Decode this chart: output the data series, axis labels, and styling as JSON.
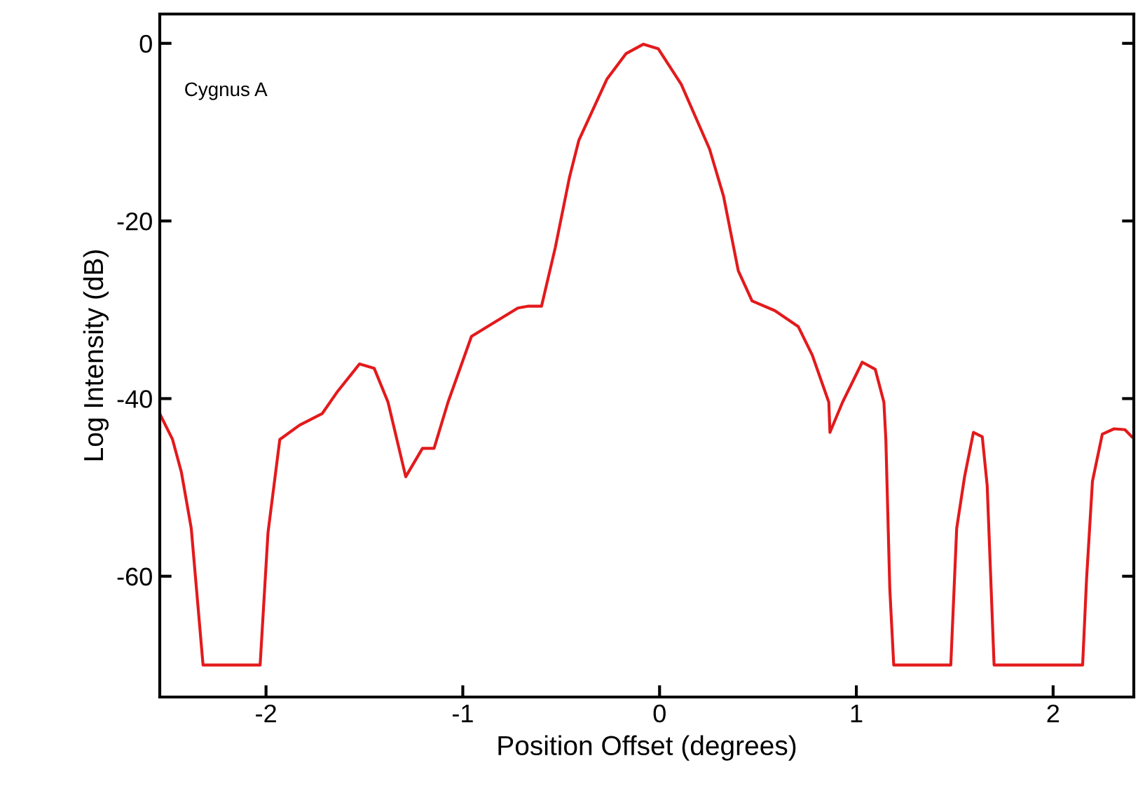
{
  "chart_data": {
    "type": "line",
    "xlabel": "Position Offset (degrees)",
    "ylabel": "Log Intensity (dB)",
    "annotations": [
      "Cygnus A"
    ],
    "xlim": [
      -2.54,
      2.41
    ],
    "ylim": [
      -73.6,
      3.3
    ],
    "xticks": [
      -2,
      -1,
      0,
      1,
      2
    ],
    "yticks": [
      0,
      -20,
      -40,
      -60
    ],
    "grid": false,
    "legend": false,
    "series": [
      {
        "color": "#e31a1c",
        "x": [
          -2.54,
          -2.475,
          -2.43,
          -2.38,
          -2.32,
          -2.03,
          -1.99,
          -1.93,
          -1.83,
          -1.715,
          -1.64,
          -1.525,
          -1.45,
          -1.38,
          -1.29,
          -1.205,
          -1.146,
          -1.075,
          -0.956,
          -0.86,
          -0.72,
          -0.67,
          -0.6,
          -0.53,
          -0.458,
          -0.41,
          -0.268,
          -0.17,
          -0.083,
          -0.007,
          0.11,
          0.254,
          0.325,
          0.4,
          0.47,
          0.586,
          0.705,
          0.776,
          0.86,
          0.866,
          0.93,
          1.03,
          1.096,
          1.14,
          1.15,
          1.17,
          1.19,
          1.48,
          1.51,
          1.55,
          1.595,
          1.64,
          1.665,
          1.7,
          2.15,
          2.17,
          2.2,
          2.25,
          2.31,
          2.365,
          2.4
        ],
        "values": [
          -41.7,
          -44.6,
          -48.3,
          -54.6,
          -70,
          -70,
          -55.1,
          -44.6,
          -43.0,
          -41.7,
          -39.3,
          -36.1,
          -36.6,
          -40.4,
          -48.8,
          -45.6,
          -45.6,
          -40.4,
          -33.0,
          -31.7,
          -29.8,
          -29.6,
          -29.6,
          -23.0,
          -15.1,
          -10.9,
          -4.05,
          -1.15,
          -0.1,
          -0.6,
          -4.6,
          -11.9,
          -17.2,
          -25.6,
          -29.0,
          -30.1,
          -31.9,
          -35.1,
          -40.4,
          -43.8,
          -40.4,
          -35.9,
          -36.7,
          -40.4,
          -44.6,
          -61.4,
          -70,
          -70,
          -54.6,
          -48.8,
          -43.8,
          -44.3,
          -49.8,
          -70,
          -70,
          -60.3,
          -49.3,
          -44.0,
          -43.4,
          -43.5,
          -44.3
        ]
      }
    ]
  }
}
